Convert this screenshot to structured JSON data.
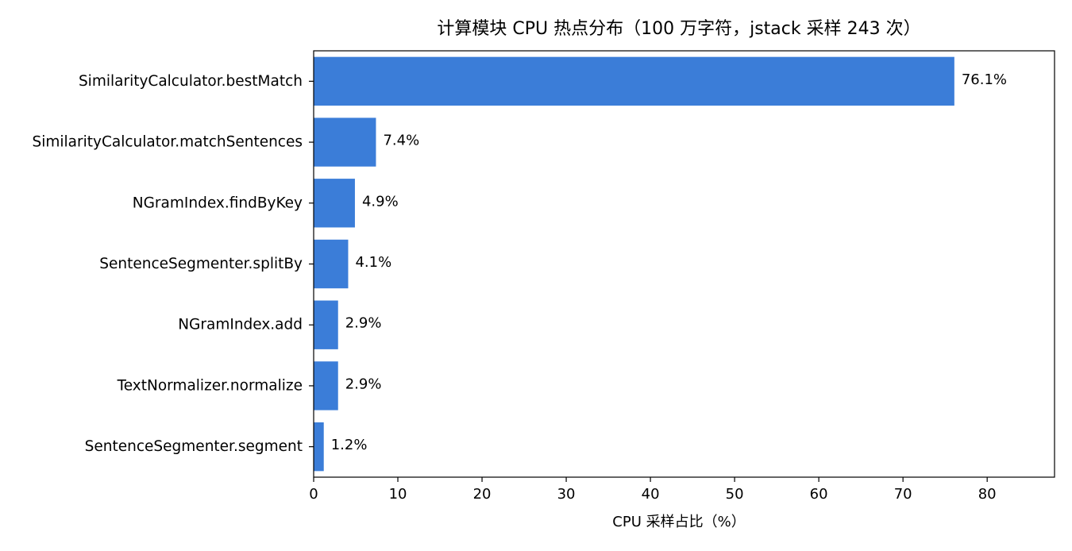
{
  "chart_data": {
    "type": "bar",
    "orientation": "horizontal",
    "title": "计算模块 CPU 热点分布（100 万字符，jstack 采样 243 次）",
    "xlabel": "CPU 采样占比（%）",
    "ylabel": "",
    "xlim": [
      0,
      88
    ],
    "xticks": [
      0,
      10,
      20,
      30,
      40,
      50,
      60,
      70,
      80
    ],
    "grid": false,
    "legend": "none",
    "bar_color": "#3b7dd8",
    "categories": [
      "SimilarityCalculator.bestMatch",
      "SimilarityCalculator.matchSentences",
      "NGramIndex.findByKey",
      "SentenceSegmenter.splitBy",
      "NGramIndex.add",
      "TextNormalizer.normalize",
      "SentenceSegmenter.segment"
    ],
    "values": [
      76.1,
      7.4,
      4.9,
      4.1,
      2.9,
      2.9,
      1.2
    ],
    "data_labels": [
      "76.1%",
      "7.4%",
      "4.9%",
      "4.1%",
      "2.9%",
      "2.9%",
      "1.2%"
    ]
  }
}
